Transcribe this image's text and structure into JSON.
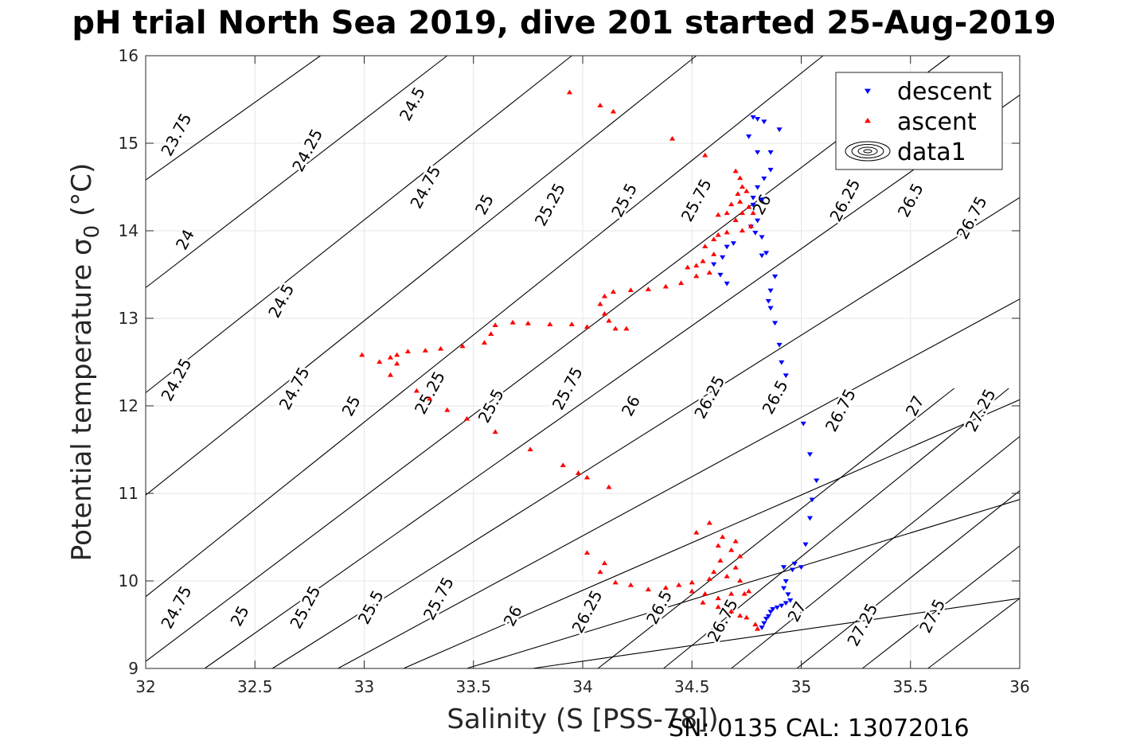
{
  "chart_data": {
    "type": "scatter",
    "title": "pH trial North Sea 2019, dive 201 started 25-Aug-2019",
    "xlabel": "Salinity (S [PSS-78])",
    "ylabel": "Potential temperature σ0 (°C)",
    "xlim": [
      32,
      36
    ],
    "ylim": [
      9,
      16
    ],
    "xticks": [
      "32",
      "32.5",
      "33",
      "33.5",
      "34",
      "34.5",
      "35",
      "35.5",
      "36"
    ],
    "yticks": [
      "9",
      "10",
      "11",
      "12",
      "13",
      "14",
      "15",
      "16"
    ],
    "grid": true,
    "legend": {
      "placement": "top-right",
      "entries": [
        {
          "label": "descent",
          "color": "#0000ff",
          "marker": "triangle-down"
        },
        {
          "label": "ascent",
          "color": "#ff0000",
          "marker": "triangle-up"
        },
        {
          "label": "data1",
          "color": "#000000",
          "marker": "contour"
        }
      ]
    },
    "contours": {
      "label": "data1",
      "color": "#000000",
      "levels": [
        "23.75",
        "24",
        "24.25",
        "24.5",
        "24.75",
        "25",
        "25.25",
        "25.5",
        "25.75",
        "26",
        "26.25",
        "26.5",
        "26.75",
        "27",
        "27.25",
        "27.5"
      ],
      "lines": [
        {
          "points": [
            [
              32.0,
              14.58
            ],
            [
              32.8,
              16.0
            ]
          ]
        },
        {
          "points": [
            [
              32.0,
              13.35
            ],
            [
              33.38,
              16.0
            ]
          ]
        },
        {
          "points": [
            [
              32.0,
              12.15
            ],
            [
              33.95,
              16.0
            ]
          ]
        },
        {
          "points": [
            [
              32.0,
              10.98
            ],
            [
              34.52,
              16.0
            ]
          ]
        },
        {
          "points": [
            [
              32.0,
              9.82
            ],
            [
              35.1,
              16.0
            ]
          ]
        },
        {
          "points": [
            [
              32.0,
              9.08
            ],
            [
              35.68,
              16.0
            ]
          ]
        },
        {
          "points": [
            [
              32.27,
              9.0
            ],
            [
              36.0,
              15.55
            ]
          ]
        },
        {
          "points": [
            [
              32.58,
              9.0
            ],
            [
              36.0,
              14.38
            ]
          ]
        },
        {
          "points": [
            [
              32.88,
              9.0
            ],
            [
              36.0,
              13.22
            ]
          ]
        },
        {
          "points": [
            [
              33.18,
              9.0
            ],
            [
              36.0,
              12.07
            ]
          ]
        },
        {
          "points": [
            [
              33.47,
              9.0
            ],
            [
              36.0,
              10.93
            ]
          ]
        },
        {
          "points": [
            [
              33.77,
              9.0
            ],
            [
              36.0,
              9.8
            ]
          ]
        },
        {
          "points": [
            [
              34.07,
              9.0
            ],
            [
              35.7,
              12.2
            ]
          ]
        },
        {
          "points": [
            [
              34.37,
              9.0
            ],
            [
              35.95,
              12.2
            ]
          ]
        },
        {
          "points": [
            [
              34.68,
              9.0
            ],
            [
              36.0,
              11.65
            ]
          ]
        },
        {
          "points": [
            [
              34.98,
              9.0
            ],
            [
              36.0,
              11.03
            ]
          ]
        },
        {
          "points": [
            [
              35.28,
              9.0
            ],
            [
              36.0,
              10.4
            ]
          ]
        },
        {
          "points": [
            [
              35.58,
              9.0
            ],
            [
              36.0,
              9.8
            ]
          ]
        }
      ],
      "labels": [
        {
          "text": "23.75",
          "s": 32.14,
          "t": 15.1
        },
        {
          "text": "24",
          "s": 32.18,
          "t": 13.9
        },
        {
          "text": "24.25",
          "s": 32.74,
          "t": 14.92
        },
        {
          "text": "24.5",
          "s": 33.22,
          "t": 15.45
        },
        {
          "text": "24.75",
          "s": 33.28,
          "t": 14.5
        },
        {
          "text": "25",
          "s": 33.55,
          "t": 14.3
        },
        {
          "text": "25.25",
          "s": 33.85,
          "t": 14.3
        },
        {
          "text": "25.5",
          "s": 34.19,
          "t": 14.35
        },
        {
          "text": "25.75",
          "s": 34.52,
          "t": 14.35
        },
        {
          "text": "26",
          "s": 34.82,
          "t": 14.3
        },
        {
          "text": "26.25",
          "s": 35.2,
          "t": 14.35
        },
        {
          "text": "26.5",
          "s": 35.5,
          "t": 14.35
        },
        {
          "text": "26.75",
          "s": 35.78,
          "t": 14.15
        },
        {
          "text": "24.25",
          "s": 32.14,
          "t": 12.3
        },
        {
          "text": "24.5",
          "s": 32.62,
          "t": 13.2
        },
        {
          "text": "24.75",
          "s": 32.68,
          "t": 12.2
        },
        {
          "text": "25",
          "s": 32.94,
          "t": 12.0
        },
        {
          "text": "25.25",
          "s": 33.3,
          "t": 12.15
        },
        {
          "text": "25.5",
          "s": 33.58,
          "t": 12.0
        },
        {
          "text": "25.75",
          "s": 33.93,
          "t": 12.2
        },
        {
          "text": "26",
          "s": 34.22,
          "t": 12.0
        },
        {
          "text": "26.25",
          "s": 34.58,
          "t": 12.1
        },
        {
          "text": "26.5",
          "s": 34.88,
          "t": 12.1
        },
        {
          "text": "26.75",
          "s": 35.18,
          "t": 11.95
        },
        {
          "text": "27",
          "s": 35.52,
          "t": 12.0
        },
        {
          "text": "27.25",
          "s": 35.82,
          "t": 11.95
        },
        {
          "text": "24.75",
          "s": 32.14,
          "t": 9.7
        },
        {
          "text": "25",
          "s": 32.43,
          "t": 9.6
        },
        {
          "text": "25.25",
          "s": 32.73,
          "t": 9.7
        },
        {
          "text": "25.5",
          "s": 33.03,
          "t": 9.7
        },
        {
          "text": "25.75",
          "s": 33.34,
          "t": 9.8
        },
        {
          "text": "26",
          "s": 33.68,
          "t": 9.6
        },
        {
          "text": "26.25",
          "s": 34.02,
          "t": 9.65
        },
        {
          "text": "26.5",
          "s": 34.35,
          "t": 9.7
        },
        {
          "text": "26.75",
          "s": 34.64,
          "t": 9.55
        },
        {
          "text": "27",
          "s": 34.98,
          "t": 9.65
        },
        {
          "text": "27.25",
          "s": 35.28,
          "t": 9.5
        },
        {
          "text": "27.5",
          "s": 35.6,
          "t": 9.6
        }
      ]
    },
    "series": [
      {
        "name": "descent",
        "color": "#0000ff",
        "marker": "triangle-down",
        "points": [
          [
            34.78,
            15.3
          ],
          [
            34.8,
            15.28
          ],
          [
            34.83,
            15.25
          ],
          [
            34.76,
            15.08
          ],
          [
            34.9,
            15.16
          ],
          [
            34.8,
            14.9
          ],
          [
            34.86,
            14.9
          ],
          [
            34.83,
            14.6
          ],
          [
            34.86,
            14.7
          ],
          [
            34.8,
            14.5
          ],
          [
            34.78,
            14.38
          ],
          [
            34.82,
            14.36
          ],
          [
            34.78,
            14.3
          ],
          [
            34.8,
            14.12
          ],
          [
            34.77,
            14.05
          ],
          [
            34.79,
            13.98
          ],
          [
            34.82,
            13.93
          ],
          [
            34.66,
            13.82
          ],
          [
            34.69,
            13.86
          ],
          [
            34.64,
            13.7
          ],
          [
            34.6,
            13.62
          ],
          [
            34.63,
            13.5
          ],
          [
            34.66,
            13.4
          ],
          [
            34.84,
            13.75
          ],
          [
            34.82,
            13.72
          ],
          [
            34.88,
            13.48
          ],
          [
            34.86,
            13.32
          ],
          [
            34.85,
            13.2
          ],
          [
            34.86,
            13.12
          ],
          [
            34.88,
            12.95
          ],
          [
            34.9,
            12.7
          ],
          [
            34.91,
            12.5
          ],
          [
            34.93,
            12.35
          ],
          [
            35.01,
            11.8
          ],
          [
            35.04,
            11.45
          ],
          [
            35.07,
            11.15
          ],
          [
            35.05,
            10.93
          ],
          [
            35.04,
            10.72
          ],
          [
            35.02,
            10.42
          ],
          [
            34.97,
            10.2
          ],
          [
            35.0,
            10.16
          ],
          [
            34.92,
            10.16
          ],
          [
            34.96,
            10.13
          ],
          [
            34.93,
            10.0
          ],
          [
            34.92,
            9.92
          ],
          [
            34.94,
            9.85
          ],
          [
            34.95,
            9.78
          ],
          [
            34.93,
            9.75
          ],
          [
            34.91,
            9.72
          ],
          [
            34.89,
            9.7
          ],
          [
            34.87,
            9.68
          ],
          [
            34.86,
            9.65
          ],
          [
            34.85,
            9.6
          ],
          [
            34.84,
            9.57
          ],
          [
            34.83,
            9.52
          ],
          [
            34.82,
            9.47
          ]
        ]
      },
      {
        "name": "ascent",
        "color": "#ff0000",
        "marker": "triangle-up",
        "points": [
          [
            33.94,
            15.58
          ],
          [
            34.08,
            15.43
          ],
          [
            34.14,
            15.36
          ],
          [
            34.41,
            15.05
          ],
          [
            34.56,
            14.86
          ],
          [
            34.7,
            14.68
          ],
          [
            34.72,
            14.6
          ],
          [
            34.73,
            14.5
          ],
          [
            34.71,
            14.42
          ],
          [
            34.75,
            14.45
          ],
          [
            34.72,
            14.33
          ],
          [
            34.68,
            14.3
          ],
          [
            34.76,
            14.27
          ],
          [
            34.73,
            14.2
          ],
          [
            34.78,
            14.2
          ],
          [
            34.66,
            14.2
          ],
          [
            34.62,
            14.18
          ],
          [
            34.7,
            14.12
          ],
          [
            34.77,
            14.05
          ],
          [
            34.73,
            14.0
          ],
          [
            34.66,
            13.98
          ],
          [
            34.62,
            13.95
          ],
          [
            34.6,
            13.9
          ],
          [
            34.56,
            13.82
          ],
          [
            34.6,
            13.73
          ],
          [
            34.55,
            13.65
          ],
          [
            34.52,
            13.6
          ],
          [
            34.48,
            13.58
          ],
          [
            34.58,
            13.52
          ],
          [
            34.52,
            13.48
          ],
          [
            34.45,
            13.4
          ],
          [
            34.38,
            13.36
          ],
          [
            34.3,
            13.33
          ],
          [
            34.22,
            13.32
          ],
          [
            34.14,
            13.3
          ],
          [
            34.1,
            13.25
          ],
          [
            34.08,
            13.16
          ],
          [
            34.1,
            13.05
          ],
          [
            34.12,
            12.97
          ],
          [
            34.15,
            12.88
          ],
          [
            34.2,
            12.88
          ],
          [
            34.02,
            12.9
          ],
          [
            33.95,
            12.93
          ],
          [
            33.85,
            12.93
          ],
          [
            33.75,
            12.94
          ],
          [
            33.68,
            12.95
          ],
          [
            33.6,
            12.92
          ],
          [
            33.58,
            12.82
          ],
          [
            33.55,
            12.72
          ],
          [
            33.45,
            12.68
          ],
          [
            33.35,
            12.65
          ],
          [
            33.28,
            12.63
          ],
          [
            33.2,
            12.62
          ],
          [
            33.15,
            12.58
          ],
          [
            33.12,
            12.55
          ],
          [
            33.15,
            12.48
          ],
          [
            33.07,
            12.5
          ],
          [
            32.99,
            12.58
          ],
          [
            33.12,
            12.35
          ],
          [
            33.24,
            12.17
          ],
          [
            33.3,
            12.08
          ],
          [
            33.38,
            11.95
          ],
          [
            33.47,
            11.85
          ],
          [
            33.6,
            11.7
          ],
          [
            33.76,
            11.5
          ],
          [
            33.91,
            11.32
          ],
          [
            33.98,
            11.23
          ],
          [
            34.02,
            11.18
          ],
          [
            34.12,
            11.07
          ],
          [
            34.58,
            10.66
          ],
          [
            34.52,
            10.55
          ],
          [
            34.64,
            10.5
          ],
          [
            34.7,
            10.45
          ],
          [
            34.62,
            10.4
          ],
          [
            34.68,
            10.35
          ],
          [
            34.72,
            10.28
          ],
          [
            34.63,
            10.23
          ],
          [
            34.7,
            10.15
          ],
          [
            34.6,
            10.1
          ],
          [
            34.66,
            10.05
          ],
          [
            34.58,
            10.02
          ],
          [
            34.72,
            10.0
          ],
          [
            34.5,
            9.98
          ],
          [
            34.44,
            9.95
          ],
          [
            34.38,
            9.92
          ],
          [
            34.3,
            9.9
          ],
          [
            34.22,
            9.95
          ],
          [
            34.15,
            9.98
          ],
          [
            34.08,
            10.1
          ],
          [
            34.02,
            10.32
          ],
          [
            34.1,
            10.2
          ],
          [
            34.5,
            9.88
          ],
          [
            34.56,
            9.85
          ],
          [
            34.62,
            9.8
          ],
          [
            34.68,
            9.85
          ],
          [
            34.74,
            9.85
          ],
          [
            34.76,
            9.88
          ],
          [
            34.55,
            9.75
          ],
          [
            34.62,
            9.7
          ],
          [
            34.68,
            9.65
          ],
          [
            34.72,
            9.6
          ],
          [
            34.75,
            9.58
          ],
          [
            34.79,
            9.5
          ],
          [
            34.8,
            9.45
          ]
        ]
      }
    ]
  },
  "footer": {
    "note": "SN: 0135  CAL: 13072016"
  }
}
